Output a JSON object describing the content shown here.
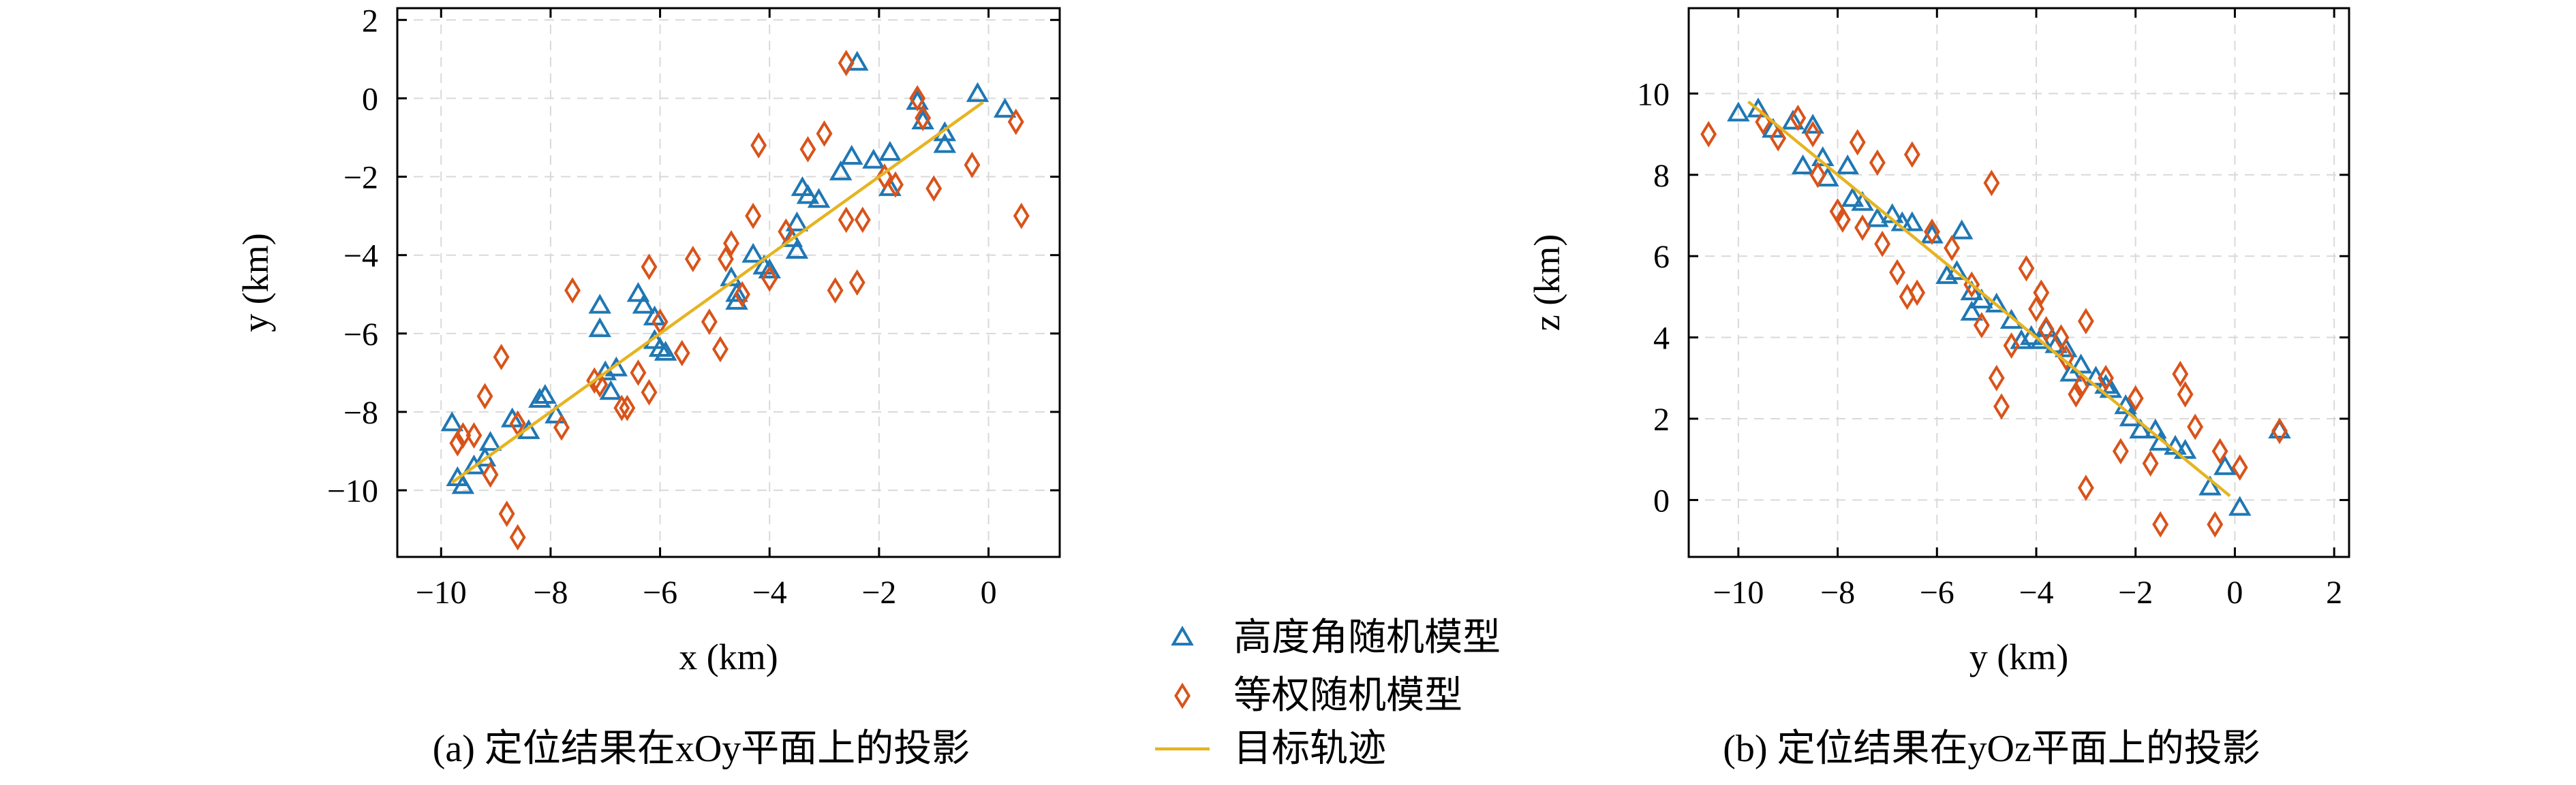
{
  "colors": {
    "triangle": "#1f77b4",
    "diamond": "#d95319",
    "line": "#e6b422",
    "grid": "#d9d9d9"
  },
  "legend": {
    "items": [
      {
        "label": "高度角随机模型",
        "marker": "triangle"
      },
      {
        "label": "等权随机模型",
        "marker": "diamond"
      },
      {
        "label": "目标轨迹",
        "marker": "line"
      }
    ]
  },
  "chart_data": [
    {
      "type": "scatter",
      "caption": "(a) 定位结果在xOy平面上的投影",
      "xlabel": "x (km)",
      "ylabel": "y (km)",
      "xlim": [
        -10.8,
        1.3
      ],
      "ylim": [
        -11.7,
        2.3
      ],
      "xticks": [
        -10,
        -8,
        -6,
        -4,
        -2,
        0
      ],
      "yticks": [
        -10,
        -8,
        -6,
        -4,
        -2,
        0,
        2
      ],
      "grid": true,
      "series": [
        {
          "name": "高度角随机模型",
          "marker": "triangle",
          "points": [
            [
              -9.8,
              -8.3
            ],
            [
              -9.7,
              -9.7
            ],
            [
              -9.6,
              -9.9
            ],
            [
              -9.4,
              -9.4
            ],
            [
              -9.2,
              -9.2
            ],
            [
              -9.1,
              -8.8
            ],
            [
              -8.7,
              -8.2
            ],
            [
              -8.4,
              -8.5
            ],
            [
              -8.2,
              -7.7
            ],
            [
              -8.1,
              -7.6
            ],
            [
              -7.9,
              -8.1
            ],
            [
              -7.1,
              -5.3
            ],
            [
              -7.1,
              -5.9
            ],
            [
              -7.0,
              -7.0
            ],
            [
              -6.9,
              -7.5
            ],
            [
              -6.8,
              -6.9
            ],
            [
              -6.4,
              -5.0
            ],
            [
              -6.3,
              -5.3
            ],
            [
              -6.1,
              -5.6
            ],
            [
              -6.1,
              -6.2
            ],
            [
              -6.0,
              -6.4
            ],
            [
              -5.9,
              -6.5
            ],
            [
              -4.7,
              -4.6
            ],
            [
              -4.6,
              -5.0
            ],
            [
              -4.6,
              -5.2
            ],
            [
              -4.3,
              -4.0
            ],
            [
              -4.1,
              -4.3
            ],
            [
              -4.0,
              -4.4
            ],
            [
              -3.6,
              -3.6
            ],
            [
              -3.5,
              -3.9
            ],
            [
              -3.5,
              -3.2
            ],
            [
              -3.4,
              -2.3
            ],
            [
              -3.3,
              -2.5
            ],
            [
              -3.1,
              -2.6
            ],
            [
              -2.7,
              -1.9
            ],
            [
              -2.5,
              -1.5
            ],
            [
              -2.4,
              0.9
            ],
            [
              -2.1,
              -1.6
            ],
            [
              -1.8,
              -1.4
            ],
            [
              -1.8,
              -2.3
            ],
            [
              -1.3,
              -0.1
            ],
            [
              -1.2,
              -0.6
            ],
            [
              -0.8,
              -0.9
            ],
            [
              -0.8,
              -1.2
            ],
            [
              -0.2,
              0.1
            ],
            [
              0.3,
              -0.3
            ]
          ]
        },
        {
          "name": "等权随机模型",
          "marker": "diamond",
          "points": [
            [
              -9.7,
              -8.8
            ],
            [
              -9.6,
              -8.6
            ],
            [
              -9.4,
              -8.6
            ],
            [
              -9.2,
              -7.6
            ],
            [
              -9.1,
              -9.6
            ],
            [
              -8.9,
              -6.6
            ],
            [
              -8.8,
              -10.6
            ],
            [
              -8.6,
              -11.2
            ],
            [
              -8.6,
              -8.3
            ],
            [
              -7.8,
              -8.4
            ],
            [
              -7.6,
              -4.9
            ],
            [
              -7.2,
              -7.2
            ],
            [
              -7.1,
              -7.3
            ],
            [
              -6.7,
              -7.9
            ],
            [
              -6.6,
              -7.9
            ],
            [
              -6.4,
              -7.0
            ],
            [
              -6.2,
              -7.5
            ],
            [
              -6.2,
              -4.3
            ],
            [
              -6.0,
              -5.7
            ],
            [
              -5.6,
              -6.5
            ],
            [
              -5.4,
              -4.1
            ],
            [
              -5.1,
              -5.7
            ],
            [
              -4.9,
              -6.4
            ],
            [
              -4.8,
              -4.1
            ],
            [
              -4.7,
              -3.7
            ],
            [
              -4.5,
              -5.0
            ],
            [
              -4.3,
              -3.0
            ],
            [
              -4.2,
              -1.2
            ],
            [
              -4.0,
              -4.6
            ],
            [
              -3.7,
              -3.4
            ],
            [
              -3.3,
              -1.3
            ],
            [
              -3.0,
              -0.9
            ],
            [
              -2.8,
              -4.9
            ],
            [
              -2.6,
              -3.1
            ],
            [
              -2.6,
              0.9
            ],
            [
              -2.4,
              -4.7
            ],
            [
              -2.3,
              -3.1
            ],
            [
              -1.9,
              -2.0
            ],
            [
              -1.7,
              -2.2
            ],
            [
              -1.3,
              0.0
            ],
            [
              -1.2,
              -0.5
            ],
            [
              -1.0,
              -2.3
            ],
            [
              -0.3,
              -1.7
            ],
            [
              0.5,
              -0.6
            ],
            [
              0.6,
              -3.0
            ]
          ]
        },
        {
          "name": "目标轨迹",
          "marker": "line",
          "points": [
            [
              -9.8,
              -9.8
            ],
            [
              -0.1,
              -0.1
            ]
          ]
        }
      ]
    },
    {
      "type": "scatter",
      "caption": "(b) 定位结果在yOz平面上的投影",
      "xlabel": "y (km)",
      "ylabel": "z (km)",
      "xlim": [
        -11.0,
        2.3
      ],
      "ylim": [
        -1.4,
        12.1
      ],
      "xticks": [
        -10,
        -8,
        -6,
        -4,
        -2,
        0,
        2
      ],
      "yticks": [
        0,
        2,
        4,
        6,
        8,
        10
      ],
      "grid": true,
      "series": [
        {
          "name": "高度角随机模型",
          "marker": "triangle",
          "points": [
            [
              -10.0,
              9.5
            ],
            [
              -9.6,
              9.6
            ],
            [
              -9.3,
              9.1
            ],
            [
              -8.9,
              9.3
            ],
            [
              -8.7,
              8.2
            ],
            [
              -8.5,
              9.2
            ],
            [
              -8.3,
              8.4
            ],
            [
              -8.2,
              7.9
            ],
            [
              -7.8,
              8.2
            ],
            [
              -7.7,
              7.4
            ],
            [
              -7.5,
              7.3
            ],
            [
              -7.2,
              6.9
            ],
            [
              -6.9,
              7.0
            ],
            [
              -6.7,
              6.8
            ],
            [
              -6.5,
              6.8
            ],
            [
              -6.1,
              6.5
            ],
            [
              -5.8,
              5.5
            ],
            [
              -5.6,
              5.6
            ],
            [
              -5.5,
              6.6
            ],
            [
              -5.3,
              5.1
            ],
            [
              -5.3,
              4.6
            ],
            [
              -5.1,
              4.9
            ],
            [
              -4.8,
              4.8
            ],
            [
              -4.5,
              4.4
            ],
            [
              -4.3,
              3.9
            ],
            [
              -4.1,
              4.0
            ],
            [
              -3.9,
              3.9
            ],
            [
              -3.8,
              4.2
            ],
            [
              -3.6,
              3.8
            ],
            [
              -3.4,
              3.7
            ],
            [
              -3.3,
              3.1
            ],
            [
              -3.1,
              3.3
            ],
            [
              -2.8,
              3.0
            ],
            [
              -2.6,
              2.8
            ],
            [
              -2.5,
              2.7
            ],
            [
              -2.2,
              2.3
            ],
            [
              -2.1,
              2.0
            ],
            [
              -1.9,
              1.7
            ],
            [
              -1.6,
              1.7
            ],
            [
              -1.5,
              1.4
            ],
            [
              -1.2,
              1.3
            ],
            [
              -1.0,
              1.2
            ],
            [
              -0.5,
              0.3
            ],
            [
              -0.2,
              0.8
            ],
            [
              0.1,
              -0.2
            ],
            [
              0.9,
              1.7
            ]
          ]
        },
        {
          "name": "等权随机模型",
          "marker": "diamond",
          "points": [
            [
              -10.6,
              9.0
            ],
            [
              -9.5,
              9.3
            ],
            [
              -9.2,
              8.9
            ],
            [
              -8.8,
              9.4
            ],
            [
              -8.5,
              9.0
            ],
            [
              -8.4,
              8.0
            ],
            [
              -8.0,
              7.1
            ],
            [
              -7.9,
              6.9
            ],
            [
              -7.6,
              8.8
            ],
            [
              -7.5,
              6.7
            ],
            [
              -7.2,
              8.3
            ],
            [
              -7.1,
              6.3
            ],
            [
              -6.8,
              5.6
            ],
            [
              -6.6,
              5.0
            ],
            [
              -6.5,
              8.5
            ],
            [
              -6.4,
              5.1
            ],
            [
              -6.1,
              6.6
            ],
            [
              -5.7,
              6.2
            ],
            [
              -5.3,
              5.3
            ],
            [
              -5.1,
              4.3
            ],
            [
              -4.9,
              7.8
            ],
            [
              -4.8,
              3.0
            ],
            [
              -4.7,
              2.3
            ],
            [
              -4.5,
              3.8
            ],
            [
              -4.2,
              5.7
            ],
            [
              -4.0,
              4.7
            ],
            [
              -3.9,
              5.1
            ],
            [
              -3.8,
              4.2
            ],
            [
              -3.5,
              4.0
            ],
            [
              -3.4,
              3.5
            ],
            [
              -3.2,
              2.6
            ],
            [
              -3.1,
              2.8
            ],
            [
              -3.0,
              4.4
            ],
            [
              -3.0,
              0.3
            ],
            [
              -2.6,
              3.0
            ],
            [
              -2.3,
              1.2
            ],
            [
              -2.0,
              2.5
            ],
            [
              -1.7,
              0.9
            ],
            [
              -1.5,
              -0.6
            ],
            [
              -1.1,
              3.1
            ],
            [
              -1.0,
              2.6
            ],
            [
              -0.8,
              1.8
            ],
            [
              -0.4,
              -0.6
            ],
            [
              -0.3,
              1.2
            ],
            [
              0.1,
              0.8
            ],
            [
              0.9,
              1.7
            ]
          ]
        },
        {
          "name": "目标轨迹",
          "marker": "line",
          "points": [
            [
              -9.8,
              9.8
            ],
            [
              -0.1,
              0.1
            ]
          ]
        }
      ]
    }
  ]
}
